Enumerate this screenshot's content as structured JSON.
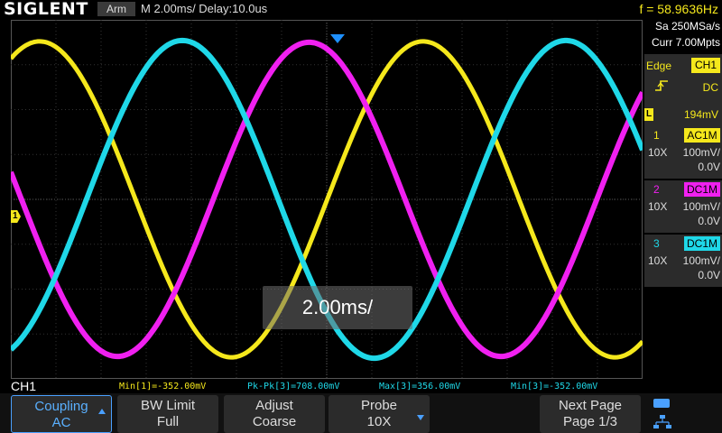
{
  "header": {
    "logo": "SIGLENT",
    "acq_status": "Arm",
    "timebase": "M 2.00ms/ Delay:10.0us",
    "frequency": "f = 58.9636Hz"
  },
  "acquisition": {
    "sample_rate": "Sa 250MSa/s",
    "memory_depth": "Curr 7.00Mpts"
  },
  "trigger": {
    "type": "Edge",
    "source": "CH1",
    "slope_icon": "rising-edge-icon",
    "coupling": "DC",
    "level_tag": "L",
    "level": "194mV"
  },
  "channels": [
    {
      "num": "1",
      "coupling": "AC1M",
      "probe": "10X",
      "scale": "100mV/",
      "offset": "0.0V",
      "color": "#f5e81c"
    },
    {
      "num": "2",
      "coupling": "DC1M",
      "probe": "10X",
      "scale": "100mV/",
      "offset": "0.0V",
      "color": "#f020f0"
    },
    {
      "num": "3",
      "coupling": "DC1M",
      "probe": "10X",
      "scale": "100mV/",
      "offset": "0.0V",
      "color": "#1fd8e8"
    }
  ],
  "markers": {
    "ch1_offset": "1"
  },
  "popup": {
    "timebase_change": "2.00ms/"
  },
  "measurements": [
    {
      "label": "Min[1]=-352.00mV",
      "color": "#f5e81c"
    },
    {
      "label": "Pk-Pk[3]=708.00mV",
      "color": "#1fd8e8"
    },
    {
      "label": "Max[3]=356.00mV",
      "color": "#1fd8e8"
    },
    {
      "label": "Min[3]=-352.00mV",
      "color": "#1fd8e8"
    }
  ],
  "menu": {
    "title": "CH1",
    "softkeys": [
      {
        "line1": "Coupling",
        "line2": "AC"
      },
      {
        "line1": "BW Limit",
        "line2": "Full"
      },
      {
        "line1": "Adjust",
        "line2": "Coarse"
      },
      {
        "line1": "Probe",
        "line2": "10X"
      },
      {
        "line1": "Next Page",
        "line2": "Page 1/3"
      }
    ]
  },
  "colors": {
    "ch1": "#f5e81c",
    "ch2": "#f020f0",
    "ch3": "#1fd8e8",
    "accent": "#4aa0ff"
  },
  "waveforms": {
    "period_ms": 17,
    "time_per_div_ms": 2,
    "volts_per_div": 0.1,
    "ch1": {
      "amplitude_v": 0.352,
      "phase_deg": 63
    },
    "ch2": {
      "amplitude_v": 0.35,
      "phase_deg": 170
    },
    "ch3": {
      "amplitude_v": 0.354,
      "phase_deg": 289
    }
  },
  "status_icons": [
    "usb-icon",
    "network-icon"
  ]
}
